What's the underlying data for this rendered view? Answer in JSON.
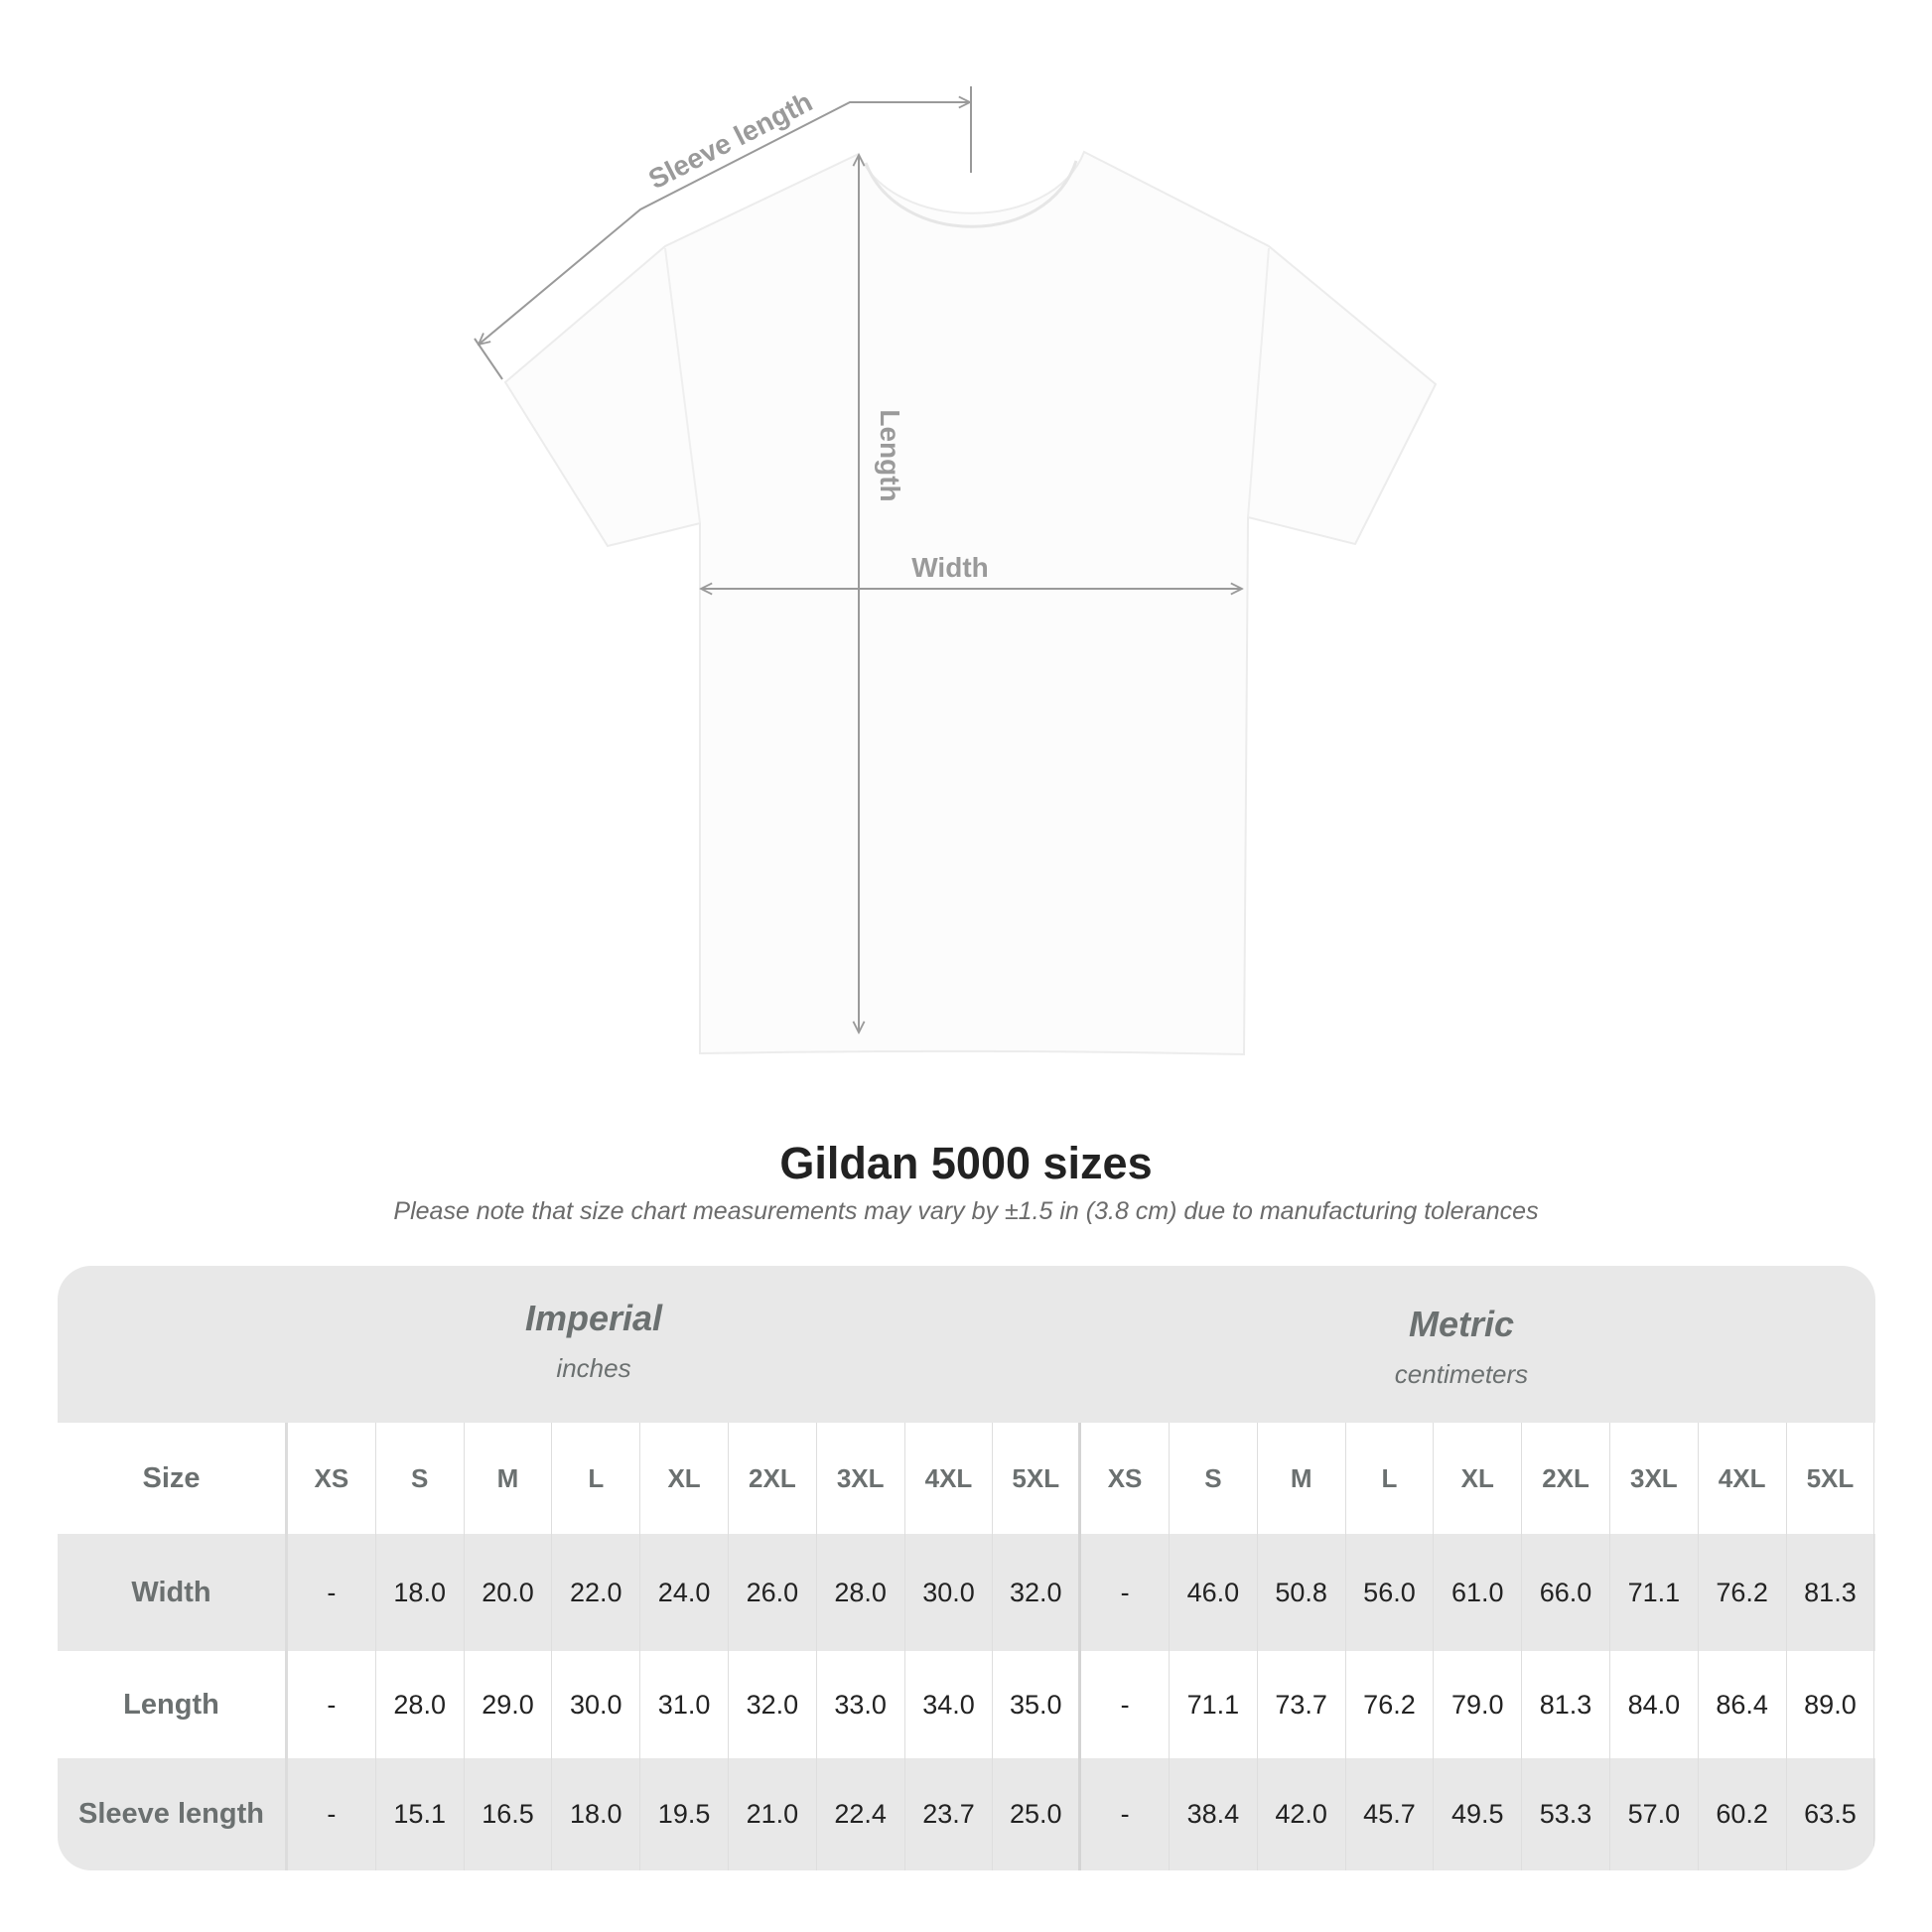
{
  "diagram": {
    "labels": {
      "sleeve": "Sleeve length",
      "length": "Length",
      "width": "Width"
    },
    "colors": {
      "shirt": "#ffffff",
      "measure_lines": "#9a9a9a"
    }
  },
  "title": "Gildan 5000 sizes",
  "note": "Please note that size chart measurements may vary by ±1.5 in (3.8 cm) due to manufacturing tolerances",
  "table": {
    "imperial": {
      "title": "Imperial",
      "unit": "inches"
    },
    "metric": {
      "title": "Metric",
      "unit": "centimeters"
    },
    "size_label": "Size",
    "sizes": [
      "XS",
      "S",
      "M",
      "L",
      "XL",
      "2XL",
      "3XL",
      "4XL",
      "5XL",
      "XS",
      "S",
      "M",
      "L",
      "XL",
      "2XL",
      "3XL",
      "4XL",
      "5XL"
    ],
    "rows": [
      {
        "label": "Width",
        "values": [
          "-",
          "18.0",
          "20.0",
          "22.0",
          "24.0",
          "26.0",
          "28.0",
          "30.0",
          "32.0",
          "-",
          "46.0",
          "50.8",
          "56.0",
          "61.0",
          "66.0",
          "71.1",
          "76.2",
          "81.3"
        ]
      },
      {
        "label": "Length",
        "values": [
          "-",
          "28.0",
          "29.0",
          "30.0",
          "31.0",
          "32.0",
          "33.0",
          "34.0",
          "35.0",
          "-",
          "71.1",
          "73.7",
          "76.2",
          "79.0",
          "81.3",
          "84.0",
          "86.4",
          "89.0"
        ]
      },
      {
        "label": "Sleeve length",
        "values": [
          "-",
          "15.1",
          "16.5",
          "18.0",
          "19.5",
          "21.0",
          "22.4",
          "23.7",
          "25.0",
          "-",
          "38.4",
          "42.0",
          "45.7",
          "49.5",
          "53.3",
          "57.0",
          "60.2",
          "63.5"
        ]
      }
    ],
    "colors": {
      "header_bg": "#e8e8e8",
      "label_text": "#6b7070",
      "value_text": "#222222"
    }
  }
}
